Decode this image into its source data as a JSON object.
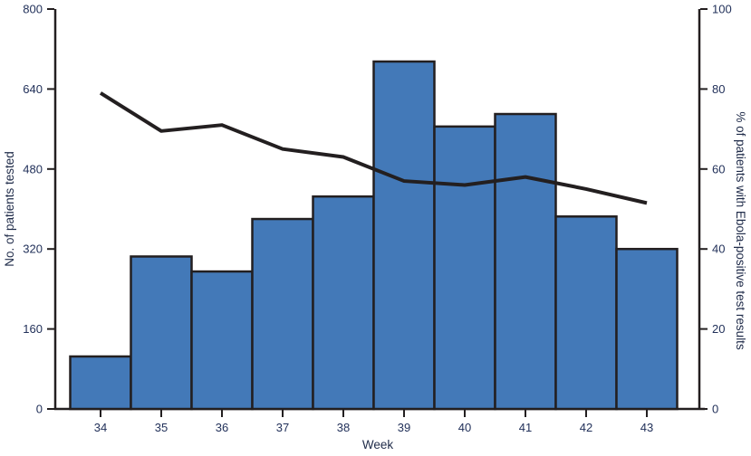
{
  "chart_data": {
    "type": "combo-bar-line",
    "title": "",
    "categories": [
      "34",
      "35",
      "36",
      "37",
      "38",
      "39",
      "40",
      "41",
      "42",
      "43"
    ],
    "series": [
      {
        "name": "No. of patients tested",
        "type": "bar",
        "axis": "left",
        "values": [
          105,
          305,
          275,
          380,
          425,
          695,
          565,
          590,
          385,
          320
        ],
        "color": "#4379B8",
        "border_color": "#231F20"
      },
      {
        "name": "% of patients with Ebola-positive test results",
        "type": "line",
        "axis": "right",
        "values": [
          79,
          69.5,
          71,
          65,
          63,
          57,
          56,
          58,
          55,
          51.5
        ],
        "color": "#231F20"
      }
    ],
    "xlabel": "Week",
    "ylabel_left": "No. of patients tested",
    "ylabel_right": "% of patients with Ebola-positive test results",
    "left_axis": {
      "min": 0,
      "max": 800,
      "ticks": [
        0,
        160,
        320,
        480,
        640,
        800
      ]
    },
    "right_axis": {
      "min": 0,
      "max": 100,
      "ticks": [
        0,
        20,
        40,
        60,
        80,
        100
      ]
    },
    "grid": false,
    "legend": false
  },
  "colors": {
    "bar_fill": "#4379B8",
    "line_stroke": "#231F20",
    "axis_stroke": "#231F20",
    "label_text": "#22315A",
    "background": "#FFFFFF"
  }
}
